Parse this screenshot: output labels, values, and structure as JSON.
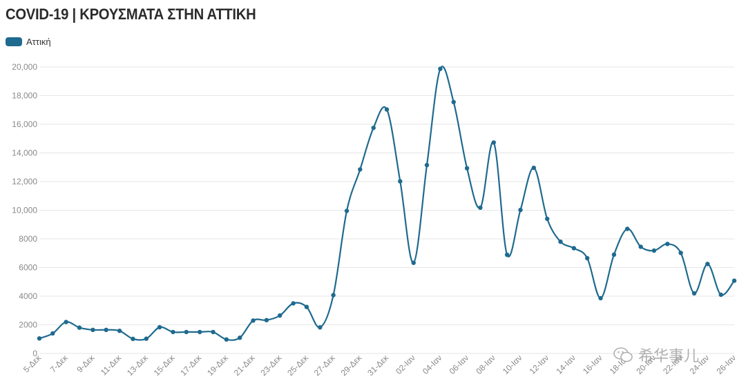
{
  "colors": {
    "series": "#1f6a8f",
    "grid": "#e6e6e6",
    "axis_text": "#888888"
  },
  "watermark": {
    "text": "希华事儿",
    "icon": "wechat-icon"
  },
  "chart_data": {
    "type": "line",
    "title": "COVID-19 | ΚΡΟΥΣΜΑΤΑ ΣΤΗΝ ΑΤΤΙΚΗ",
    "legend_position": "top-left",
    "grid": true,
    "ylim": [
      0,
      20000
    ],
    "y_ticks": [
      "0",
      "2000",
      "4000",
      "6000",
      "8000",
      "10,000",
      "12,000",
      "14,000",
      "16,000",
      "18,000",
      "20,000"
    ],
    "x_tick_labels": [
      "5-Δεκ",
      "7-Δεκ",
      "9-Δεκ",
      "11-Δεκ",
      "13-Δεκ",
      "15-Δεκ",
      "17-Δεκ",
      "19-Δεκ",
      "21-Δεκ",
      "23-Δεκ",
      "25-Δεκ",
      "27-Δεκ",
      "29-Δεκ",
      "31-Δεκ",
      "02-Ιαν",
      "04-Ιαν",
      "06-Ιαν",
      "08-Ιαν",
      "10-Ιαν",
      "12-Ιαν",
      "14-Ιαν",
      "16-Ιαν",
      "18-Ιαν",
      "20-Ιαν",
      "22-Ιαν",
      "24-Ιαν",
      "26-Ιαν"
    ],
    "series": [
      {
        "name": "Αττική",
        "values": [
          1050,
          1400,
          2200,
          1800,
          1650,
          1650,
          1580,
          1020,
          1030,
          1830,
          1500,
          1500,
          1500,
          1500,
          980,
          1100,
          2300,
          2330,
          2650,
          3500,
          3250,
          1820,
          4070,
          9950,
          12850,
          15750,
          17030,
          12020,
          6330,
          13150,
          19870,
          17550,
          12930,
          10180,
          14730,
          6890,
          10020,
          12960,
          9400,
          7800,
          7350,
          6650,
          3860,
          6900,
          8700,
          7450,
          7180,
          7650,
          7020,
          4200,
          6250,
          4100,
          5080
        ]
      }
    ]
  }
}
